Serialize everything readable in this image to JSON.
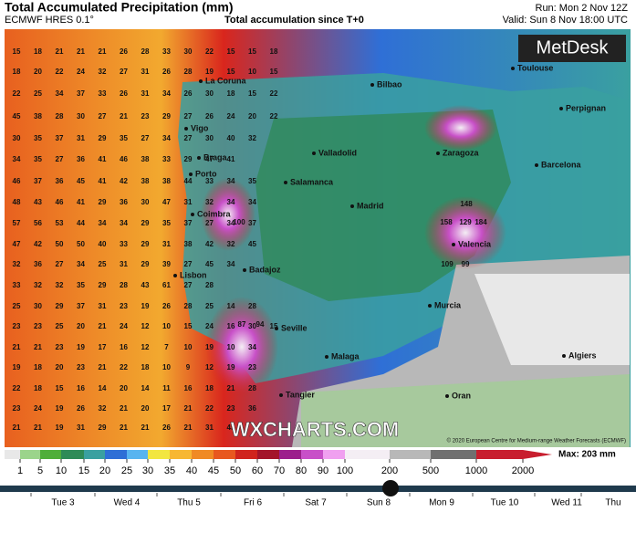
{
  "header": {
    "title": "Total Accumulated Precipitation (mm)",
    "model": "ECMWF HRES 0.1°",
    "accumulation": "Total accumulation since T+0",
    "run": "Run: Mon 2 Nov 12Z",
    "valid": "Valid: Sun 8 Nov 18:00 UTC"
  },
  "logo": "MetDesk",
  "watermark": "WXCHARTS.COM",
  "copyright": "© 2020 European Centre for Medium-range Weather Forecasts (ECMWF)",
  "cities": [
    "La Coruna",
    "Bilbao",
    "Toulouse",
    "Perpignan",
    "Vigo",
    "Valladolid",
    "Zaragoza",
    "Braga",
    "Barcelona",
    "Porto",
    "Salamanca",
    "Madrid",
    "Coimbra",
    "Valencia",
    "Badajoz",
    "Lisbon",
    "Murcia",
    "Seville",
    "Malaga",
    "Algiers",
    "Tangier",
    "Oran"
  ],
  "grid_rows": [
    [
      15,
      18,
      21,
      21,
      21,
      26,
      28,
      33,
      30,
      22,
      15,
      15,
      18
    ],
    [
      18,
      20,
      22,
      24,
      32,
      27,
      31,
      26,
      28,
      19,
      15,
      10,
      15
    ],
    [
      22,
      25,
      34,
      37,
      33,
      26,
      31,
      34,
      26,
      30,
      18,
      15,
      22
    ],
    [
      45,
      38,
      28,
      30,
      27,
      21,
      23,
      29,
      27,
      26,
      24,
      20,
      22
    ],
    [
      30,
      35,
      37,
      31,
      29,
      35,
      27,
      34,
      27,
      30,
      40,
      32
    ],
    [
      34,
      35,
      27,
      36,
      41,
      46,
      38,
      33,
      29,
      47,
      41
    ],
    [
      46,
      37,
      36,
      45,
      41,
      42,
      38,
      38,
      44,
      33,
      34,
      35
    ],
    [
      48,
      43,
      46,
      41,
      29,
      36,
      30,
      47,
      31,
      32,
      34,
      34
    ],
    [
      57,
      56,
      53,
      44,
      34,
      34,
      29,
      35,
      37,
      27,
      34,
      37
    ],
    [
      47,
      42,
      50,
      50,
      40,
      33,
      29,
      31,
      38,
      42,
      32,
      45
    ],
    [
      32,
      36,
      27,
      34,
      25,
      31,
      29,
      39,
      27,
      45,
      34
    ],
    [
      33,
      32,
      32,
      35,
      29,
      28,
      43,
      61,
      27,
      28
    ],
    [
      25,
      30,
      29,
      37,
      31,
      23,
      19,
      26,
      28,
      25,
      14,
      28
    ],
    [
      23,
      23,
      25,
      20,
      21,
      24,
      12,
      10,
      15,
      24,
      16,
      30,
      15
    ],
    [
      21,
      21,
      23,
      19,
      17,
      16,
      12,
      7,
      10,
      19,
      10,
      34
    ],
    [
      19,
      18,
      20,
      23,
      21,
      22,
      18,
      10,
      9,
      12,
      19,
      23
    ],
    [
      22,
      18,
      15,
      16,
      14,
      20,
      14,
      11,
      16,
      18,
      21,
      28
    ],
    [
      23,
      24,
      19,
      26,
      32,
      21,
      20,
      17,
      21,
      22,
      23,
      36
    ],
    [
      21,
      21,
      19,
      31,
      29,
      21,
      21,
      26,
      21,
      31,
      45
    ]
  ],
  "peaks": [
    148,
    158,
    129,
    184,
    109,
    99,
    100,
    94,
    87
  ],
  "scale": {
    "ticks": [
      1,
      5,
      10,
      15,
      20,
      25,
      30,
      35,
      40,
      45,
      50,
      60,
      70,
      80,
      90,
      100,
      200,
      500,
      1000,
      2000
    ],
    "colors": [
      "#e8e8e8",
      "#9bd48b",
      "#4fae3a",
      "#2e8b57",
      "#3aa0a0",
      "#2f6fd6",
      "#58b4f0",
      "#f2e640",
      "#f7b733",
      "#f08a24",
      "#e8581f",
      "#d0241d",
      "#a3142a",
      "#9c1f8c",
      "#c850c8",
      "#f0a0f0",
      "#f4eef4",
      "#b8b8b8",
      "#707070",
      "#c81e2e"
    ],
    "max": "Max: 203 mm"
  },
  "timeline": [
    "Tue 3",
    "Wed 4",
    "Thu 5",
    "Fri 6",
    "Sat 7",
    "Sun 8",
    "Mon 9",
    "Tue 10",
    "Wed 11",
    "Thu"
  ]
}
